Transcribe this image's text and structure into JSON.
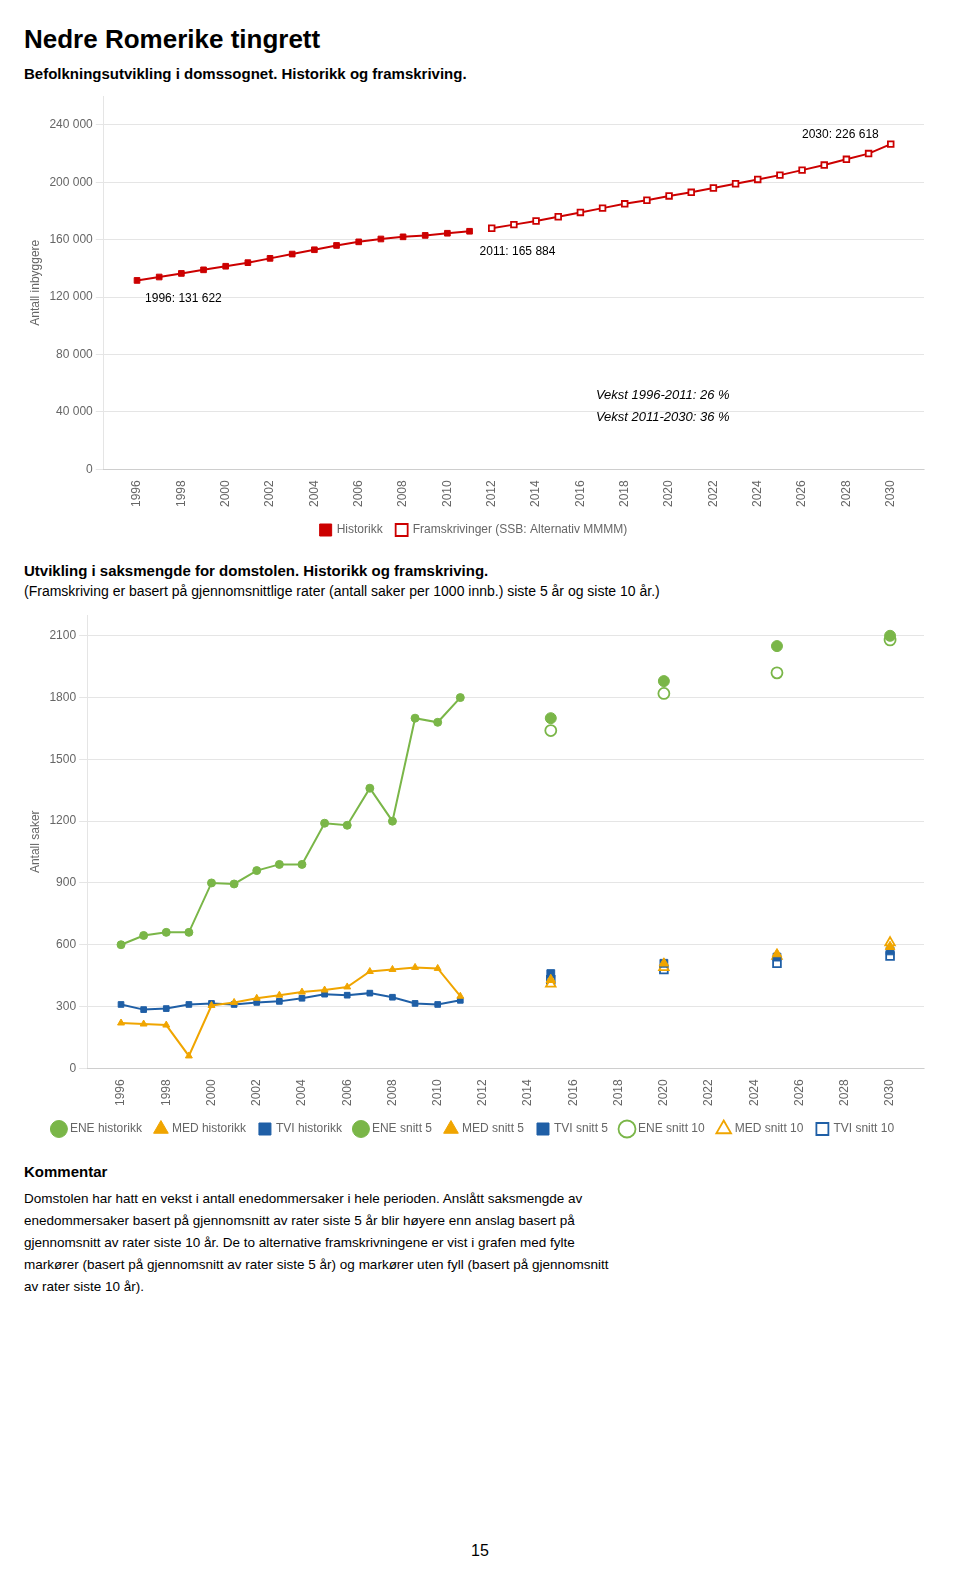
{
  "title": "Nedre Romerike tingrett",
  "chart_data": [
    {
      "type": "line",
      "title": "Befolkningsutvikling i domssognet. Historikk og framskriving.",
      "y_label": "Antall inbyggere",
      "xlim": [
        1994.5,
        2031.5
      ],
      "xticks": [
        1996,
        1998,
        2000,
        2002,
        2004,
        2006,
        2008,
        2010,
        2012,
        2014,
        2016,
        2018,
        2020,
        2022,
        2024,
        2026,
        2028,
        2030
      ],
      "ylim": [
        0,
        260000
      ],
      "yticks": [
        0,
        {
          "value": 40000,
          "label": "40 000"
        },
        {
          "value": 80000,
          "label": "80 000"
        },
        {
          "value": 120000,
          "label": "120 000"
        },
        {
          "value": 160000,
          "label": "160 000"
        },
        {
          "value": 200000,
          "label": "200 000"
        },
        {
          "value": 240000,
          "label": "240 000"
        }
      ],
      "grid": "y",
      "legend": "bottom",
      "series": [
        {
          "name": "Historikk",
          "type": "line",
          "marker": "square",
          "color": "#cc0000",
          "x": [
            1996,
            1997,
            1998,
            1999,
            2000,
            2001,
            2002,
            2003,
            2004,
            2005,
            2006,
            2007,
            2008,
            2009,
            2010,
            2011
          ],
          "values": [
            131622,
            134000,
            136500,
            139000,
            141500,
            144000,
            147000,
            150000,
            153000,
            156000,
            158500,
            160500,
            162000,
            163000,
            164500,
            165884
          ]
        },
        {
          "name": "Framskrivinger (SSB: Alternativ MMMM)",
          "type": "line",
          "marker": "open_square",
          "color": "#cc0000",
          "x": [
            2012,
            2013,
            2014,
            2015,
            2016,
            2017,
            2018,
            2019,
            2020,
            2021,
            2022,
            2023,
            2024,
            2025,
            2026,
            2027,
            2028,
            2029,
            2030
          ],
          "values": [
            168000,
            170500,
            173000,
            176000,
            179000,
            182000,
            185000,
            187500,
            190500,
            193000,
            196000,
            199000,
            202000,
            205000,
            208500,
            212000,
            216000,
            220000,
            226618
          ]
        }
      ],
      "annotations": [
        "1996: 131 622",
        "2011: 165 884",
        "2030: 226 618",
        "Vekst 1996-2011: 26 %",
        "Vekst 2011-2030: 36 %"
      ]
    },
    {
      "type": "line",
      "title": "Utvikling i saksmengde for domstolen. Historikk og framskriving.",
      "subtitle": "(Framskriving er basert på gjennomsnittlige rater (antall saker per 1000 innb.) siste 5 år og siste 10 år.)",
      "y_label": "Antall saker",
      "xlim": [
        1994.5,
        2031.5
      ],
      "xticks": [
        1996,
        1998,
        2000,
        2002,
        2004,
        2006,
        2008,
        2010,
        2012,
        2014,
        2016,
        2018,
        2020,
        2022,
        2024,
        2026,
        2028,
        2030
      ],
      "ylim": [
        0,
        2200
      ],
      "yticks": [
        0,
        300,
        600,
        900,
        1200,
        1500,
        1800,
        2100
      ],
      "grid": "y",
      "legend": "bottom",
      "series": [
        {
          "name": "ENE historikk",
          "type": "line",
          "marker": "circle",
          "color": "#7ab648",
          "x": [
            1996,
            1997,
            1998,
            1999,
            2000,
            2001,
            2002,
            2003,
            2004,
            2005,
            2006,
            2007,
            2008,
            2009,
            2010,
            2011
          ],
          "values": [
            600,
            645,
            660,
            660,
            900,
            895,
            960,
            990,
            990,
            1190,
            1180,
            1360,
            1200,
            1700,
            1680,
            1800
          ]
        },
        {
          "name": "MED historikk",
          "type": "line",
          "marker": "triangle",
          "color": "#f0a500",
          "x": [
            1996,
            1997,
            1998,
            1999,
            2000,
            2001,
            2002,
            2003,
            2004,
            2005,
            2006,
            2007,
            2008,
            2009,
            2010,
            2011
          ],
          "values": [
            220,
            215,
            210,
            60,
            305,
            320,
            340,
            355,
            370,
            380,
            395,
            470,
            480,
            490,
            485,
            350
          ]
        },
        {
          "name": "TVI historikk",
          "type": "line",
          "marker": "square",
          "color": "#1f5fa6",
          "x": [
            1996,
            1997,
            1998,
            1999,
            2000,
            2001,
            2002,
            2003,
            2004,
            2005,
            2006,
            2007,
            2008,
            2009,
            2010,
            2011
          ],
          "values": [
            310,
            285,
            290,
            310,
            315,
            310,
            320,
            325,
            340,
            360,
            355,
            365,
            345,
            315,
            310,
            330
          ]
        },
        {
          "name": "ENE snitt 5",
          "type": "scatter",
          "marker": "circle",
          "color": "#7ab648",
          "x": [
            2015,
            2020,
            2025,
            2030
          ],
          "values": [
            1700,
            1880,
            2050,
            2100
          ]
        },
        {
          "name": "MED snitt 5",
          "type": "scatter",
          "marker": "triangle",
          "color": "#f0a500",
          "x": [
            2015,
            2020,
            2025,
            2030
          ],
          "values": [
            430,
            510,
            555,
            590
          ]
        },
        {
          "name": "TVI snitt 5",
          "type": "scatter",
          "marker": "square",
          "color": "#1f5fa6",
          "x": [
            2015,
            2020,
            2025,
            2030
          ],
          "values": [
            460,
            510,
            540,
            570
          ]
        },
        {
          "name": "ENE snitt 10",
          "type": "scatter",
          "marker": "open_circle",
          "color": "#7ab648",
          "x": [
            2015,
            2020,
            2025,
            2030
          ],
          "values": [
            1640,
            1820,
            1920,
            2080
          ]
        },
        {
          "name": "MED snitt 10",
          "type": "scatter",
          "marker": "open_triangle",
          "color": "#f0a500",
          "x": [
            2015,
            2020,
            2025,
            2030
          ],
          "values": [
            410,
            490,
            545,
            610
          ]
        },
        {
          "name": "TVI snitt 10",
          "type": "scatter",
          "marker": "open_square",
          "color": "#1f5fa6",
          "x": [
            2015,
            2020,
            2025,
            2030
          ],
          "values": [
            430,
            480,
            510,
            545
          ]
        }
      ]
    }
  ],
  "comment": {
    "title": "Kommentar",
    "lines": [
      "Domstolen har hatt en vekst i antall enedommersaker i hele perioden. Anslått saksmengde av",
      "enedommersaker basert på gjennomsnitt av rater siste 5 år blir høyere enn anslag basert på",
      "gjennomsnitt av rater siste 10 år. De to alternative framskrivningene er vist i grafen med fylte",
      "markører (basert på gjennomsnitt av rater siste 5 år) og markører uten fyll (basert på gjennomsnitt",
      "av rater siste 10 år)."
    ]
  },
  "page_number": "15"
}
